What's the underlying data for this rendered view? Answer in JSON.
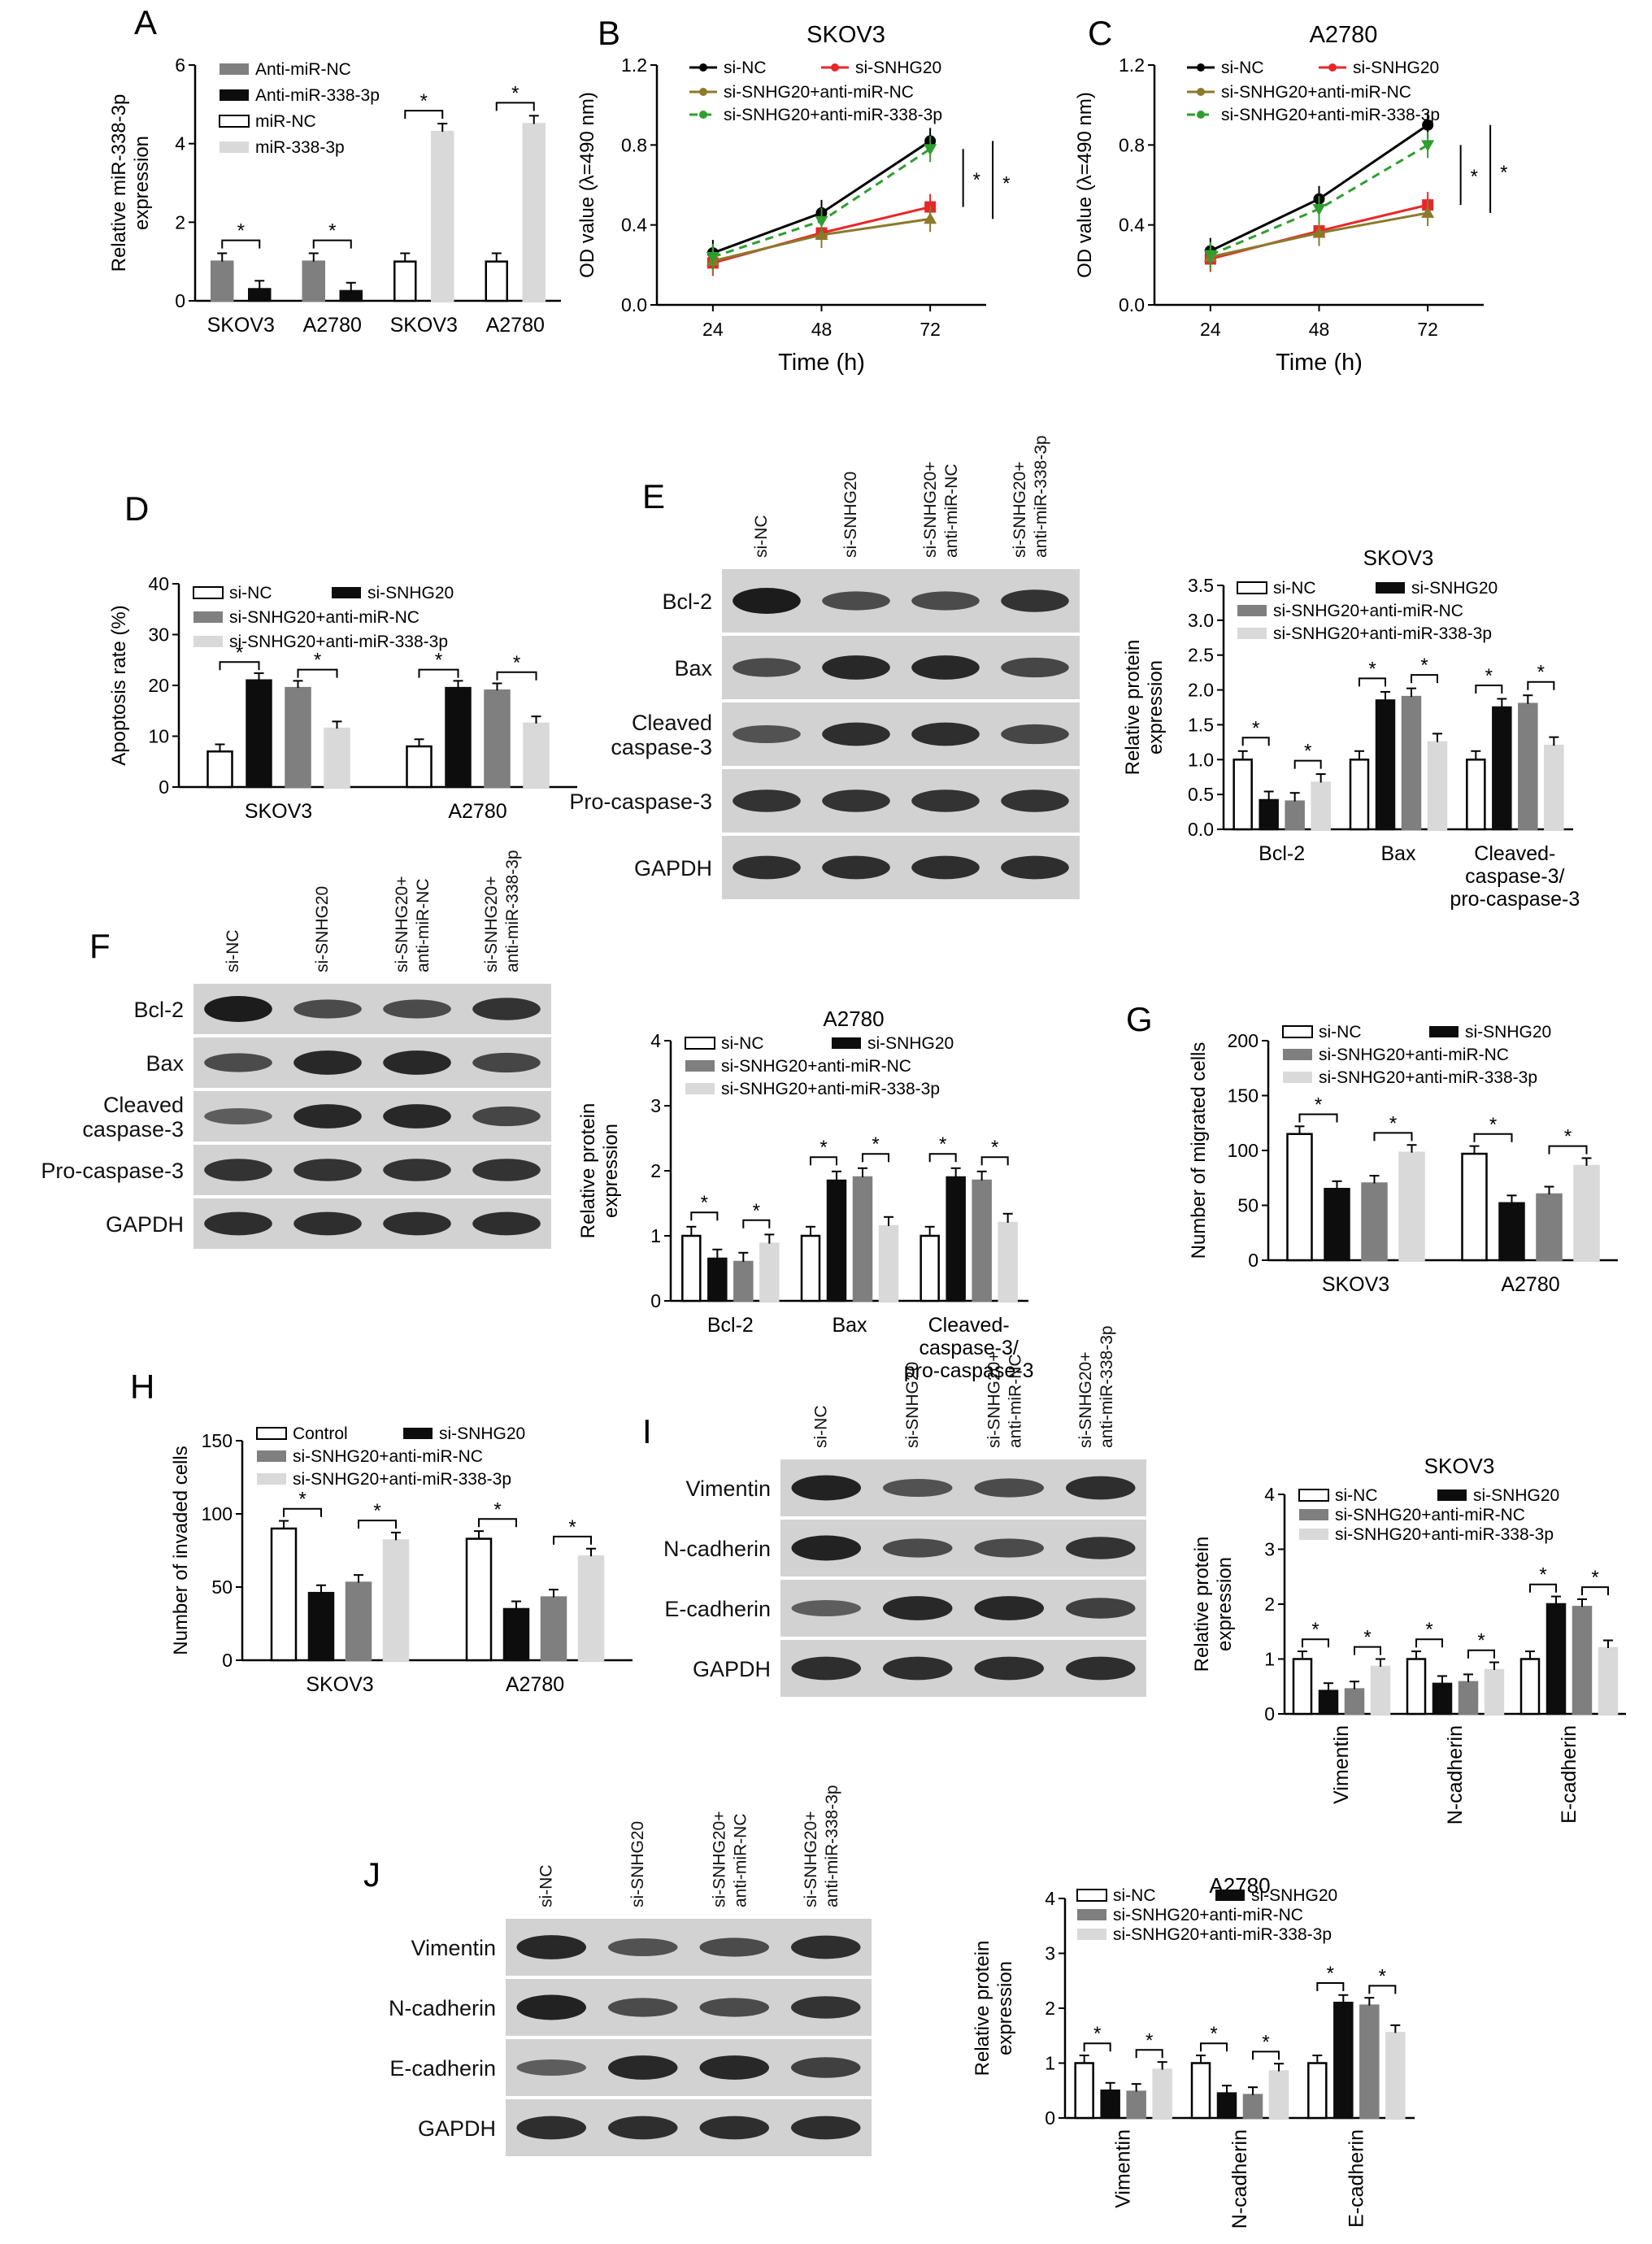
{
  "colors": {
    "white_bar": "#ffffff",
    "black_bar": "#0d0d0d",
    "grey_bar": "#7f7f7f",
    "light_bar": "#d9d9d9",
    "line_siNC": "#000000",
    "line_siSNHG20": "#e8262a",
    "line_anti_nc": "#8a7a2a",
    "line_anti_338": "#2e9e2e",
    "blot_band": "#1c1c1c",
    "blot_bg": "#d2d2d2"
  },
  "series_names": {
    "siNC": "si-NC",
    "siSNHG20": "si-SNHG20",
    "antiNC": "si-SNHG20+anti-miR-NC",
    "anti338": "si-SNHG20+anti-miR-338-3p",
    "control": "Control"
  },
  "panels": {
    "A": {
      "label": "A"
    },
    "B": {
      "label": "B"
    },
    "C": {
      "label": "C"
    },
    "D": {
      "label": "D"
    },
    "E": {
      "label": "E"
    },
    "F": {
      "label": "F"
    },
    "G": {
      "label": "G"
    },
    "H": {
      "label": "H"
    },
    "I": {
      "label": "I"
    },
    "J": {
      "label": "J"
    }
  },
  "chart_data": [
    {
      "id": "A",
      "type": "bar",
      "ylabel_lines": [
        "Relative miR-338-3p",
        "expression"
      ],
      "ylim": [
        0,
        6
      ],
      "yticks": [
        0,
        2,
        4,
        6
      ],
      "legend": [
        "Anti-miR-NC",
        "Anti-miR-338-3p",
        "miR-NC",
        "miR-338-3p"
      ],
      "groups": [
        {
          "category": "SKOV3",
          "bars": [
            {
              "name": "Anti-miR-NC",
              "value": 1.0
            },
            {
              "name": "Anti-miR-338-3p",
              "value": 0.3
            }
          ]
        },
        {
          "category": "A2780",
          "bars": [
            {
              "name": "Anti-miR-NC",
              "value": 1.0
            },
            {
              "name": "Anti-miR-338-3p",
              "value": 0.25
            }
          ]
        },
        {
          "category": "SKOV3",
          "bars": [
            {
              "name": "miR-NC",
              "value": 1.0
            },
            {
              "name": "miR-338-3p",
              "value": 4.3
            }
          ]
        },
        {
          "category": "A2780",
          "bars": [
            {
              "name": "miR-NC",
              "value": 1.0
            },
            {
              "name": "miR-338-3p",
              "value": 4.5
            }
          ]
        }
      ]
    },
    {
      "id": "B",
      "type": "line",
      "title": "SKOV3",
      "xlabel": "Time (h)",
      "ylabel": "OD value (λ=490 nm)",
      "x": [
        24,
        48,
        72
      ],
      "ylim": [
        0.0,
        1.2
      ],
      "yticks": [
        0.0,
        0.4,
        0.8,
        1.2
      ],
      "series": [
        {
          "name": "si-NC",
          "values": [
            0.26,
            0.46,
            0.82
          ]
        },
        {
          "name": "si-SNHG20",
          "values": [
            0.21,
            0.36,
            0.49
          ]
        },
        {
          "name": "si-SNHG20+anti-miR-NC",
          "values": [
            0.22,
            0.35,
            0.43
          ]
        },
        {
          "name": "si-SNHG20+anti-miR-338-3p",
          "values": [
            0.24,
            0.42,
            0.78
          ]
        }
      ]
    },
    {
      "id": "C",
      "type": "line",
      "title": "A2780",
      "xlabel": "Time (h)",
      "ylabel": "OD value (λ=490 nm)",
      "x": [
        24,
        48,
        72
      ],
      "ylim": [
        0.0,
        1.2
      ],
      "yticks": [
        0.0,
        0.4,
        0.8,
        1.2
      ],
      "series": [
        {
          "name": "si-NC",
          "values": [
            0.27,
            0.53,
            0.9
          ]
        },
        {
          "name": "si-SNHG20",
          "values": [
            0.23,
            0.37,
            0.5
          ]
        },
        {
          "name": "si-SNHG20+anti-miR-NC",
          "values": [
            0.24,
            0.36,
            0.46
          ]
        },
        {
          "name": "si-SNHG20+anti-miR-338-3p",
          "values": [
            0.25,
            0.48,
            0.8
          ]
        }
      ]
    },
    {
      "id": "D",
      "type": "bar",
      "ylabel": "Apoptosis rate (%)",
      "ylim": [
        0,
        40
      ],
      "yticks": [
        0,
        10,
        20,
        30,
        40
      ],
      "legend": [
        "si-NC",
        "si-SNHG20",
        "si-SNHG20+anti-miR-NC",
        "si-SNHG20+anti-miR-338-3p"
      ],
      "groups": [
        {
          "category": "SKOV3",
          "values": [
            7,
            21,
            19.5,
            11.5
          ]
        },
        {
          "category": "A2780",
          "values": [
            8,
            19.5,
            19,
            12.5
          ]
        }
      ]
    },
    {
      "id": "E",
      "type": "bar",
      "title": "SKOV3",
      "ylabel_lines": [
        "Relative protein",
        "expression"
      ],
      "ylim": [
        0,
        3.5
      ],
      "yticks": [
        0.0,
        0.5,
        1.0,
        1.5,
        2.0,
        2.5,
        3.0,
        3.5
      ],
      "ytick_decimals": 1,
      "legend": [
        "si-NC",
        "si-SNHG20",
        "si-SNHG20+anti-miR-NC",
        "si-SNHG20+anti-miR-338-3p"
      ],
      "groups": [
        {
          "category": "Bcl-2",
          "values": [
            1.0,
            0.42,
            0.4,
            0.67
          ]
        },
        {
          "category": "Bax",
          "values": [
            1.0,
            1.85,
            1.9,
            1.25
          ]
        },
        {
          "category_lines": [
            "Cleaved-",
            "caspase-3/",
            "pro-caspase-3"
          ],
          "values": [
            1.0,
            1.75,
            1.8,
            1.2
          ]
        }
      ]
    },
    {
      "id": "F",
      "type": "bar",
      "title": "A2780",
      "ylabel_lines": [
        "Relative protein",
        "expression"
      ],
      "ylim": [
        0,
        4
      ],
      "yticks": [
        0,
        1,
        2,
        3,
        4
      ],
      "legend": [
        "si-NC",
        "si-SNHG20",
        "si-SNHG20+anti-miR-NC",
        "si-SNHG20+anti-miR-338-3p"
      ],
      "groups": [
        {
          "category": "Bcl-2",
          "values": [
            1.0,
            0.65,
            0.6,
            0.88
          ]
        },
        {
          "category": "Bax",
          "values": [
            1.0,
            1.85,
            1.9,
            1.15
          ]
        },
        {
          "category_lines": [
            "Cleaved-",
            "caspase-3/",
            "pro-caspase-3"
          ],
          "values": [
            1.0,
            1.9,
            1.85,
            1.2
          ]
        }
      ]
    },
    {
      "id": "G",
      "type": "bar",
      "ylabel": "Number of migrated cells",
      "ylim": [
        0,
        200
      ],
      "yticks": [
        0,
        50,
        100,
        150,
        200
      ],
      "legend": [
        "si-NC",
        "si-SNHG20",
        "si-SNHG20+anti-miR-NC",
        "si-SNHG20+anti-miR-338-3p"
      ],
      "groups": [
        {
          "category": "SKOV3",
          "values": [
            115,
            65,
            70,
            98
          ]
        },
        {
          "category": "A2780",
          "values": [
            97,
            52,
            60,
            86
          ]
        }
      ]
    },
    {
      "id": "H",
      "type": "bar",
      "ylabel": "Number of invaded cells",
      "ylim": [
        0,
        150
      ],
      "yticks": [
        0,
        50,
        100,
        150
      ],
      "legend": [
        "Control",
        "si-SNHG20",
        "si-SNHG20+anti-miR-NC",
        "si-SNHG20+anti-miR-338-3p"
      ],
      "groups": [
        {
          "category": "SKOV3",
          "values": [
            90,
            46,
            53,
            82
          ]
        },
        {
          "category": "A2780",
          "values": [
            83,
            35,
            43,
            71
          ]
        }
      ]
    },
    {
      "id": "I",
      "type": "bar",
      "title": "SKOV3",
      "ylabel_lines": [
        "Relative protein",
        "expression"
      ],
      "ylim": [
        0,
        4
      ],
      "yticks": [
        0,
        1,
        2,
        3,
        4
      ],
      "legend": [
        "si-NC",
        "si-SNHG20",
        "si-SNHG20+anti-miR-NC",
        "si-SNHG20+anti-miR-338-3p"
      ],
      "rotated_categories": true,
      "groups": [
        {
          "category": "Vimentin",
          "values": [
            1.0,
            0.42,
            0.45,
            0.86
          ]
        },
        {
          "category": "N-cadherin",
          "values": [
            1.0,
            0.55,
            0.58,
            0.8
          ]
        },
        {
          "category": "E-cadherin",
          "values": [
            1.0,
            2.0,
            1.95,
            1.2
          ]
        }
      ]
    },
    {
      "id": "J",
      "type": "bar",
      "title": "A2780",
      "ylabel_lines": [
        "Relative protein",
        "expression"
      ],
      "ylim": [
        0,
        4
      ],
      "yticks": [
        0,
        1,
        2,
        3,
        4
      ],
      "legend": [
        "si-NC",
        "si-SNHG20",
        "si-SNHG20+anti-miR-NC",
        "si-SNHG20+anti-miR-338-3p"
      ],
      "rotated_categories": true,
      "groups": [
        {
          "category": "Vimentin",
          "values": [
            1.0,
            0.5,
            0.48,
            0.88
          ]
        },
        {
          "category": "N-cadherin",
          "values": [
            1.0,
            0.45,
            0.42,
            0.85
          ]
        },
        {
          "category": "E-cadherin",
          "values": [
            1.0,
            2.1,
            2.05,
            1.55
          ]
        }
      ]
    }
  ],
  "blots": {
    "E": {
      "lanes": [
        "si-NC",
        "si-SNHG20",
        "si-SNHG20+\nanti-miR-NC",
        "si-SNHG20+\nanti-miR-338-3p"
      ],
      "rows": [
        {
          "label": "Bcl-2",
          "intensity": [
            1.0,
            0.6,
            0.6,
            0.8
          ]
        },
        {
          "label": "Bax",
          "intensity": [
            0.6,
            0.9,
            0.9,
            0.65
          ]
        },
        {
          "label": "Cleaved\ncaspase-3",
          "intensity": [
            0.55,
            0.85,
            0.85,
            0.65
          ]
        },
        {
          "label": "Pro-caspase-3",
          "intensity": [
            0.8,
            0.8,
            0.8,
            0.8
          ]
        },
        {
          "label": "GAPDH",
          "intensity": [
            0.85,
            0.85,
            0.85,
            0.85
          ]
        }
      ]
    },
    "F": {
      "lanes": [
        "si-NC",
        "si-SNHG20",
        "si-SNHG20+\nanti-miR-NC",
        "si-SNHG20+\nanti-miR-338-3p"
      ],
      "rows": [
        {
          "label": "Bcl-2",
          "intensity": [
            1.0,
            0.6,
            0.6,
            0.8
          ]
        },
        {
          "label": "Bax",
          "intensity": [
            0.6,
            0.9,
            0.9,
            0.65
          ]
        },
        {
          "label": "Cleaved\ncaspase-3",
          "intensity": [
            0.45,
            0.9,
            0.9,
            0.65
          ]
        },
        {
          "label": "Pro-caspase-3",
          "intensity": [
            0.8,
            0.8,
            0.8,
            0.8
          ]
        },
        {
          "label": "GAPDH",
          "intensity": [
            0.85,
            0.85,
            0.85,
            0.85
          ]
        }
      ]
    },
    "I": {
      "lanes": [
        "si-NC",
        "si-SNHG20",
        "si-SNHG20+\nanti-miR-NC",
        "si-SNHG20+\nanti-miR-338-3p"
      ],
      "rows": [
        {
          "label": "Vimentin",
          "intensity": [
            0.95,
            0.55,
            0.6,
            0.85
          ]
        },
        {
          "label": "N-cadherin",
          "intensity": [
            0.95,
            0.6,
            0.6,
            0.8
          ]
        },
        {
          "label": "E-cadherin",
          "intensity": [
            0.45,
            0.9,
            0.9,
            0.7
          ]
        },
        {
          "label": "GAPDH",
          "intensity": [
            0.85,
            0.85,
            0.85,
            0.85
          ]
        }
      ]
    },
    "J": {
      "lanes": [
        "si-NC",
        "si-SNHG20",
        "si-SNHG20+\nanti-miR-NC",
        "si-SNHG20+\nanti-miR-338-3p"
      ],
      "rows": [
        {
          "label": "Vimentin",
          "intensity": [
            0.9,
            0.55,
            0.6,
            0.85
          ]
        },
        {
          "label": "N-cadherin",
          "intensity": [
            0.95,
            0.6,
            0.6,
            0.8
          ]
        },
        {
          "label": "E-cadherin",
          "intensity": [
            0.45,
            0.9,
            0.9,
            0.7
          ]
        },
        {
          "label": "GAPDH",
          "intensity": [
            0.85,
            0.85,
            0.85,
            0.85
          ]
        }
      ]
    }
  }
}
